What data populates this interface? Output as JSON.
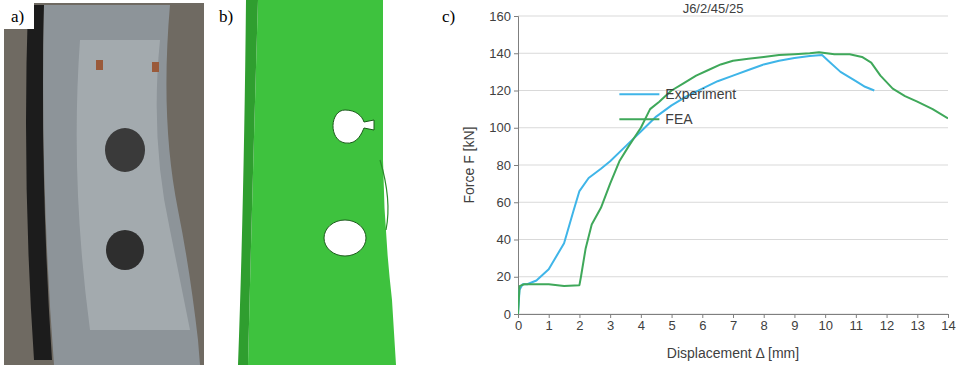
{
  "panel_labels": [
    "a)",
    "b)",
    "c)"
  ],
  "chart_data": {
    "type": "line",
    "title": "J6/2/45/25",
    "x_label": "Displacement Δ [mm]",
    "y_label": "Force F [kN]",
    "xlim": [
      0,
      14
    ],
    "xticks": [
      0,
      1,
      2,
      3,
      4,
      5,
      6,
      7,
      8,
      9,
      10,
      11,
      12,
      13,
      14
    ],
    "ylim": [
      0,
      160
    ],
    "yticks": [
      0,
      20,
      40,
      60,
      80,
      100,
      120,
      140,
      160
    ],
    "grid": "y",
    "legend": "center",
    "series": [
      {
        "name": "Experiment",
        "color": "#3fb5e8",
        "x": [
          0,
          0.05,
          0.15,
          0.3,
          0.6,
          1,
          1.5,
          1.8,
          2,
          2.3,
          2.7,
          3,
          3.5,
          4,
          4.5,
          5,
          5.5,
          6,
          6.5,
          7,
          7.5,
          8,
          8.5,
          9,
          9.5,
          9.9,
          10.1,
          10.5,
          11,
          11.3,
          11.6
        ],
        "values": [
          0,
          13,
          16,
          16,
          18,
          24,
          38,
          55,
          66,
          73,
          78,
          82,
          90,
          98,
          106,
          112,
          117,
          121,
          125,
          128,
          131,
          134,
          136,
          137.5,
          138.5,
          139,
          136,
          130,
          125,
          122,
          120
        ]
      },
      {
        "name": "FEA",
        "color": "#3fa85a",
        "x": [
          0,
          0.05,
          0.2,
          0.5,
          1,
          1.5,
          2,
          2.05,
          2.2,
          2.4,
          2.7,
          3,
          3.3,
          3.6,
          4,
          4.3,
          4.6,
          4.8,
          5,
          5.4,
          5.8,
          6.2,
          6.6,
          7,
          7.5,
          8,
          8.5,
          9,
          9.5,
          9.8,
          10.3,
          10.8,
          11.2,
          11.5,
          11.8,
          12.2,
          12.6,
          13,
          13.5,
          14
        ],
        "values": [
          0,
          15,
          16,
          16,
          16,
          15,
          15.5,
          20,
          35,
          48,
          57,
          70,
          82,
          90,
          100,
          110,
          114,
          117,
          120,
          124,
          128,
          131,
          134,
          136,
          137,
          138,
          139,
          139.5,
          140,
          140.5,
          139.5,
          139.5,
          138,
          135,
          128,
          121,
          117,
          114,
          110,
          105
        ]
      }
    ]
  }
}
